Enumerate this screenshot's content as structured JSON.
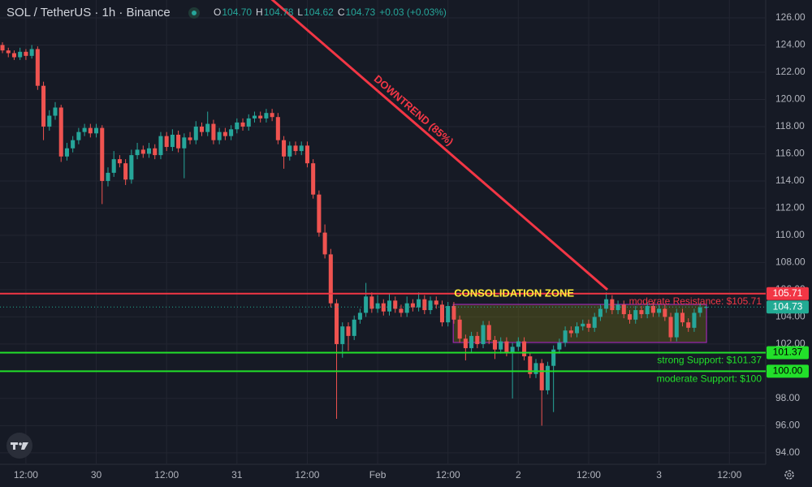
{
  "chart_data": {
    "type": "candlestick",
    "header": {
      "symbol": "SOL / TetherUS · 1h · Binance",
      "ohlc_legend": [
        {
          "label": "O",
          "value": "104.70"
        },
        {
          "label": "H",
          "value": "104.78"
        },
        {
          "label": "L",
          "value": "104.62"
        },
        {
          "label": "C",
          "value": "104.73"
        }
      ],
      "change": "+0.03 (+0.03%)"
    },
    "up_color": "#26a69a",
    "down_color": "#ef5350",
    "xlim": [
      -0.42,
      130.2
    ],
    "xticks": [
      {
        "value": 4,
        "label": "12:00"
      },
      {
        "value": 16,
        "label": "30"
      },
      {
        "value": 28,
        "label": "12:00"
      },
      {
        "value": 40,
        "label": "31"
      },
      {
        "value": 52,
        "label": "12:00"
      },
      {
        "value": 64,
        "label": "Feb"
      },
      {
        "value": 76,
        "label": "12:00"
      },
      {
        "value": 88,
        "label": "2"
      },
      {
        "value": 100,
        "label": "12:00"
      },
      {
        "value": 112,
        "label": "3"
      },
      {
        "value": 124,
        "label": "12:00"
      }
    ],
    "ylim": [
      93.16,
      127.31
    ],
    "yticks": [
      {
        "value": 94,
        "label": "94.00"
      },
      {
        "value": 96,
        "label": "96.00"
      },
      {
        "value": 98,
        "label": "98.00"
      },
      {
        "value": 100,
        "label": "100.00"
      },
      {
        "value": 102,
        "label": "102.00"
      },
      {
        "value": 104,
        "label": "104.00"
      },
      {
        "value": 106,
        "label": "106.00"
      },
      {
        "value": 108,
        "label": "108.00"
      },
      {
        "value": 110,
        "label": "110.00"
      },
      {
        "value": 112,
        "label": "112.00"
      },
      {
        "value": 114,
        "label": "114.00"
      },
      {
        "value": 116,
        "label": "116.00"
      },
      {
        "value": 118,
        "label": "118.00"
      },
      {
        "value": 120,
        "label": "120.00"
      },
      {
        "value": 122,
        "label": "122.00"
      },
      {
        "value": 124,
        "label": "124.00"
      },
      {
        "value": 126,
        "label": "126.00"
      }
    ],
    "grid": true,
    "ohlc": [
      [
        124.0,
        124.2,
        123.4,
        123.6
      ],
      [
        123.6,
        123.8,
        123.1,
        123.4
      ],
      [
        123.4,
        123.6,
        122.9,
        123.1
      ],
      [
        123.1,
        123.8,
        122.9,
        123.5
      ],
      [
        123.5,
        123.7,
        122.9,
        123.2
      ],
      [
        123.2,
        124.0,
        123.0,
        123.7
      ],
      [
        123.7,
        123.9,
        120.7,
        121.0
      ],
      [
        121.0,
        121.3,
        117.0,
        118.0
      ],
      [
        118.0,
        119.2,
        117.7,
        118.8
      ],
      [
        118.8,
        119.8,
        118.5,
        119.4
      ],
      [
        119.4,
        119.6,
        115.4,
        115.8
      ],
      [
        115.8,
        116.8,
        115.5,
        116.4
      ],
      [
        116.4,
        117.3,
        116.1,
        117.0
      ],
      [
        117.0,
        117.9,
        116.7,
        117.6
      ],
      [
        117.6,
        118.2,
        117.3,
        117.9
      ],
      [
        117.9,
        118.2,
        117.2,
        117.5
      ],
      [
        117.5,
        118.2,
        117.2,
        117.9
      ],
      [
        117.9,
        118.1,
        112.3,
        114.0
      ],
      [
        114.0,
        115.0,
        113.6,
        114.6
      ],
      [
        114.6,
        116.2,
        114.3,
        115.6
      ],
      [
        115.6,
        115.9,
        115.0,
        115.3
      ],
      [
        115.3,
        115.6,
        113.7,
        114.1
      ],
      [
        114.1,
        116.3,
        113.8,
        115.9
      ],
      [
        115.9,
        116.8,
        115.6,
        116.3
      ],
      [
        116.3,
        116.6,
        115.7,
        116.0
      ],
      [
        116.0,
        116.8,
        115.7,
        116.4
      ],
      [
        116.4,
        116.7,
        115.6,
        115.9
      ],
      [
        115.9,
        117.6,
        115.6,
        117.3
      ],
      [
        117.3,
        117.6,
        116.2,
        116.5
      ],
      [
        116.5,
        117.8,
        116.2,
        117.4
      ],
      [
        117.4,
        117.7,
        116.1,
        116.4
      ],
      [
        116.4,
        117.5,
        114.2,
        117.2
      ],
      [
        117.2,
        117.6,
        116.7,
        117.0
      ],
      [
        117.0,
        118.4,
        116.7,
        118.0
      ],
      [
        118.0,
        118.3,
        117.3,
        117.6
      ],
      [
        117.6,
        119.1,
        117.3,
        118.2
      ],
      [
        118.2,
        118.5,
        116.7,
        117.0
      ],
      [
        117.0,
        117.9,
        116.7,
        117.6
      ],
      [
        117.6,
        117.9,
        117.0,
        117.3
      ],
      [
        117.3,
        118.1,
        117.0,
        117.8
      ],
      [
        117.8,
        118.6,
        117.5,
        118.3
      ],
      [
        118.3,
        118.6,
        117.7,
        118.0
      ],
      [
        118.0,
        118.9,
        117.7,
        118.6
      ],
      [
        118.6,
        119.1,
        118.3,
        118.8
      ],
      [
        118.8,
        119.1,
        118.3,
        118.6
      ],
      [
        118.6,
        119.3,
        118.3,
        119.0
      ],
      [
        119.0,
        119.3,
        118.4,
        118.7
      ],
      [
        118.7,
        119.0,
        116.7,
        117.0
      ],
      [
        117.0,
        117.3,
        114.9,
        115.8
      ],
      [
        115.8,
        116.9,
        115.5,
        116.6
      ],
      [
        116.6,
        116.9,
        115.9,
        116.2
      ],
      [
        116.2,
        116.9,
        115.9,
        116.6
      ],
      [
        116.6,
        116.9,
        115.0,
        115.3
      ],
      [
        115.3,
        115.6,
        112.7,
        113.0
      ],
      [
        113.0,
        113.3,
        109.9,
        110.2
      ],
      [
        110.2,
        110.8,
        108.3,
        108.6
      ],
      [
        108.6,
        109.0,
        104.7,
        105.0
      ],
      [
        105.0,
        105.3,
        96.5,
        102.0
      ],
      [
        102.0,
        103.6,
        101.0,
        103.3
      ],
      [
        103.3,
        103.6,
        101.5,
        102.6
      ],
      [
        102.6,
        104.1,
        102.3,
        103.8
      ],
      [
        103.8,
        104.6,
        103.5,
        104.3
      ],
      [
        104.3,
        106.5,
        104.0,
        105.5
      ],
      [
        105.5,
        105.8,
        104.3,
        104.6
      ],
      [
        104.6,
        105.6,
        104.3,
        105.0
      ],
      [
        105.0,
        105.3,
        104.1,
        104.4
      ],
      [
        104.4,
        105.7,
        104.1,
        105.2
      ],
      [
        105.2,
        105.5,
        104.3,
        104.6
      ],
      [
        104.6,
        104.9,
        104.0,
        104.3
      ],
      [
        104.3,
        105.5,
        104.0,
        105.0
      ],
      [
        105.0,
        105.3,
        104.4,
        104.7
      ],
      [
        104.7,
        105.8,
        104.4,
        105.3
      ],
      [
        105.3,
        105.6,
        104.2,
        104.5
      ],
      [
        104.5,
        105.5,
        104.2,
        105.2
      ],
      [
        105.2,
        105.5,
        104.6,
        104.9
      ],
      [
        104.9,
        105.2,
        103.3,
        103.6
      ],
      [
        103.6,
        105.1,
        103.3,
        104.8
      ],
      [
        104.8,
        105.1,
        103.5,
        103.8
      ],
      [
        103.8,
        104.1,
        102.1,
        102.4
      ],
      [
        102.4,
        102.7,
        100.8,
        101.7
      ],
      [
        101.7,
        102.9,
        101.4,
        102.6
      ],
      [
        102.6,
        102.9,
        101.7,
        102.0
      ],
      [
        102.0,
        103.7,
        101.7,
        103.4
      ],
      [
        103.4,
        103.7,
        102.0,
        102.3
      ],
      [
        102.3,
        102.6,
        100.9,
        101.6
      ],
      [
        101.6,
        102.5,
        101.3,
        102.2
      ],
      [
        102.2,
        102.5,
        101.1,
        101.4
      ],
      [
        101.4,
        102.1,
        98.0,
        101.8
      ],
      [
        101.8,
        102.5,
        101.5,
        102.2
      ],
      [
        102.2,
        102.5,
        100.8,
        101.1
      ],
      [
        101.1,
        101.4,
        99.5,
        99.8
      ],
      [
        99.8,
        100.9,
        99.5,
        100.6
      ],
      [
        100.6,
        100.9,
        96.0,
        98.6
      ],
      [
        98.6,
        100.7,
        98.3,
        100.4
      ],
      [
        100.4,
        101.9,
        97.0,
        101.6
      ],
      [
        101.6,
        102.4,
        101.3,
        102.1
      ],
      [
        102.1,
        103.3,
        101.8,
        103.0
      ],
      [
        103.0,
        103.3,
        102.5,
        102.8
      ],
      [
        102.8,
        103.6,
        102.5,
        103.3
      ],
      [
        103.3,
        103.8,
        103.0,
        103.5
      ],
      [
        103.5,
        103.8,
        102.9,
        103.2
      ],
      [
        103.2,
        104.3,
        102.9,
        104.0
      ],
      [
        104.0,
        104.9,
        103.7,
        104.6
      ],
      [
        104.6,
        105.8,
        104.3,
        105.3
      ],
      [
        105.3,
        105.6,
        104.2,
        104.5
      ],
      [
        104.5,
        105.2,
        104.2,
        104.9
      ],
      [
        104.9,
        105.2,
        103.9,
        104.2
      ],
      [
        104.2,
        104.5,
        103.5,
        103.8
      ],
      [
        103.8,
        104.8,
        103.5,
        104.5
      ],
      [
        104.5,
        104.8,
        103.9,
        104.2
      ],
      [
        104.2,
        105.1,
        103.9,
        104.8
      ],
      [
        104.8,
        105.1,
        104.0,
        104.3
      ],
      [
        104.3,
        104.9,
        104.0,
        104.6
      ],
      [
        104.6,
        104.9,
        103.7,
        104.0
      ],
      [
        104.0,
        104.3,
        102.2,
        102.5
      ],
      [
        102.5,
        104.6,
        102.2,
        104.3
      ],
      [
        104.3,
        104.6,
        103.3,
        103.6
      ],
      [
        103.6,
        103.9,
        102.9,
        103.2
      ],
      [
        103.2,
        104.6,
        102.9,
        104.3
      ],
      [
        104.3,
        105.0,
        104.0,
        104.7
      ],
      [
        104.7,
        104.78,
        104.62,
        104.73
      ]
    ],
    "levels": [
      {
        "value": 105.71,
        "label": "105.71",
        "annotation": "moderate Resistance: $105.71",
        "color": "#f23645"
      },
      {
        "value": 101.37,
        "label": "101.37",
        "annotation": "strong Support: $101.37",
        "color": "#22e02a"
      },
      {
        "value": 100,
        "label": "100.00",
        "annotation": "moderate Support: $100",
        "color": "#22e02a"
      }
    ],
    "last_price": {
      "value": 104.73,
      "label": "104.73",
      "color": "#22ab94"
    },
    "trendline": {
      "label": "DOWNTREND (85%)",
      "points": [
        [
          44.5,
          127.9
        ],
        [
          103.2,
          106.0
        ]
      ],
      "color": "#f23645"
    },
    "zone": {
      "label": "CONSOLIDATION ZONE",
      "x": [
        76.9,
        120.1
      ],
      "y": [
        102.12,
        104.92
      ],
      "color": "#9c27b0"
    }
  }
}
